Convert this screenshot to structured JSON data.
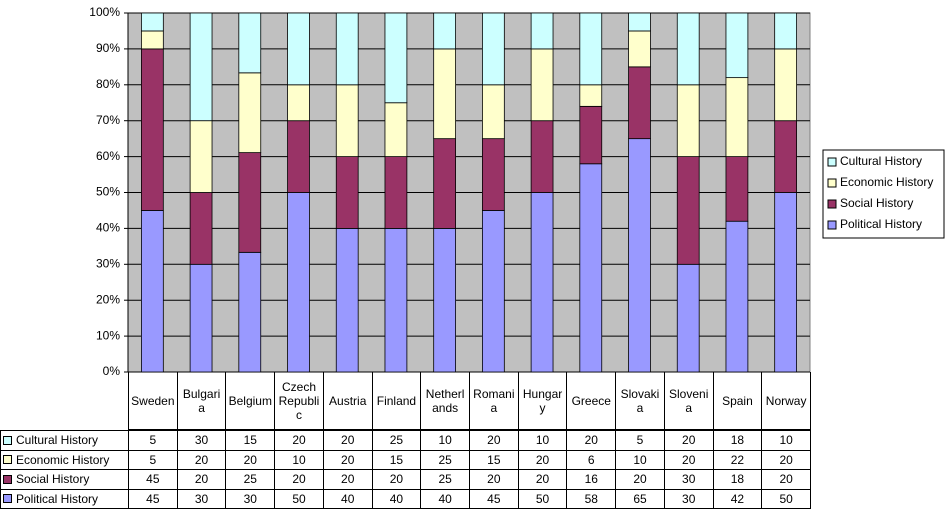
{
  "chart_data": {
    "type": "bar",
    "stacking": "percent",
    "legend": "right",
    "grid": true,
    "categories": [
      "Sweden",
      "Bulgaria",
      "Belgium",
      "Czech Republic",
      "Austria",
      "Finland",
      "Netherlands",
      "Romania",
      "Hungary",
      "Greece",
      "Slovakia",
      "Slovenia",
      "Spain",
      "Norway"
    ],
    "series": [
      {
        "name": "Cultural History",
        "color": "#ccffff",
        "values": [
          5,
          30,
          15,
          20,
          20,
          25,
          10,
          20,
          10,
          20,
          5,
          20,
          18,
          10
        ]
      },
      {
        "name": "Economic History",
        "color": "#ffffcc",
        "values": [
          5,
          20,
          20,
          10,
          20,
          15,
          25,
          15,
          20,
          6,
          10,
          20,
          22,
          20
        ]
      },
      {
        "name": "Social History",
        "color": "#993366",
        "values": [
          45,
          20,
          25,
          20,
          20,
          20,
          25,
          20,
          20,
          16,
          20,
          30,
          18,
          20
        ]
      },
      {
        "name": "Political History",
        "color": "#9999ff",
        "values": [
          45,
          30,
          30,
          50,
          40,
          40,
          40,
          45,
          50,
          58,
          65,
          30,
          42,
          50
        ]
      }
    ],
    "ylim": [
      0,
      100
    ],
    "yticks": [
      {
        "value": 0,
        "label": "0%"
      },
      {
        "value": 10,
        "label": "10%"
      },
      {
        "value": 20,
        "label": "20%"
      },
      {
        "value": 30,
        "label": "30%"
      },
      {
        "value": 40,
        "label": "40%"
      },
      {
        "value": 50,
        "label": "50%"
      },
      {
        "value": 60,
        "label": "60%"
      },
      {
        "value": 70,
        "label": "70%"
      },
      {
        "value": 80,
        "label": "80%"
      },
      {
        "value": 90,
        "label": "90%"
      },
      {
        "value": 100,
        "label": "100%"
      }
    ]
  }
}
